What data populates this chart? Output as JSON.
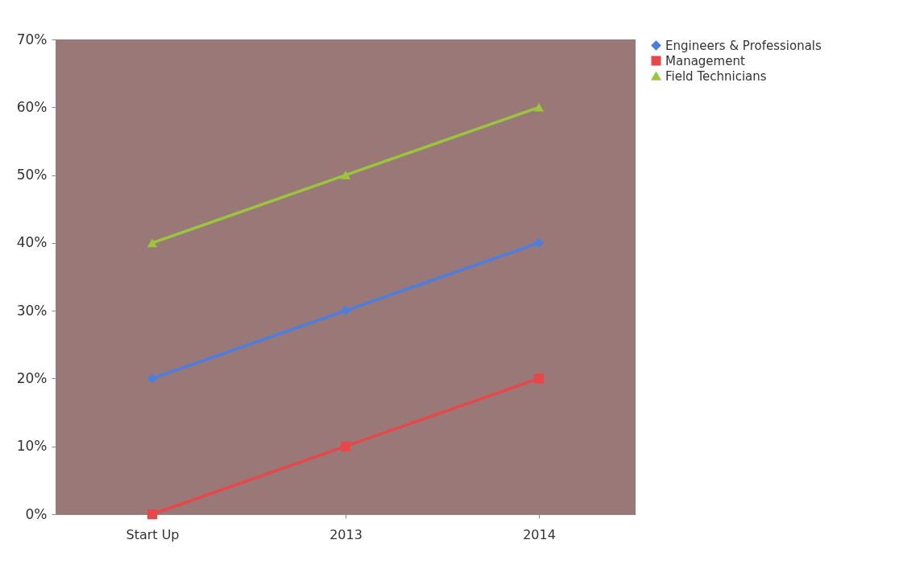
{
  "chart_data": {
    "type": "line",
    "categories": [
      "Start Up",
      "2013",
      "2014"
    ],
    "series": [
      {
        "name": "Engineers & Professionals",
        "color": "#4a7ee0",
        "marker": "diamond",
        "values": [
          20,
          30,
          40
        ]
      },
      {
        "name": "Management",
        "color": "#e8474a",
        "marker": "square",
        "values": [
          0,
          10,
          20
        ]
      },
      {
        "name": "Field Technicians",
        "color": "#9ac63c",
        "marker": "triangle",
        "values": [
          40,
          50,
          60
        ]
      }
    ],
    "ylim": [
      0,
      70
    ],
    "yticks": [
      {
        "value": 0,
        "label": "0%"
      },
      {
        "value": 10,
        "label": "10%"
      },
      {
        "value": 20,
        "label": "20%"
      },
      {
        "value": 30,
        "label": "30%"
      },
      {
        "value": 40,
        "label": "40%"
      },
      {
        "value": 50,
        "label": "50%"
      },
      {
        "value": 60,
        "label": "60%"
      },
      {
        "value": 70,
        "label": "70%"
      }
    ],
    "grid": false,
    "legend": "right",
    "line_style": "solid"
  }
}
